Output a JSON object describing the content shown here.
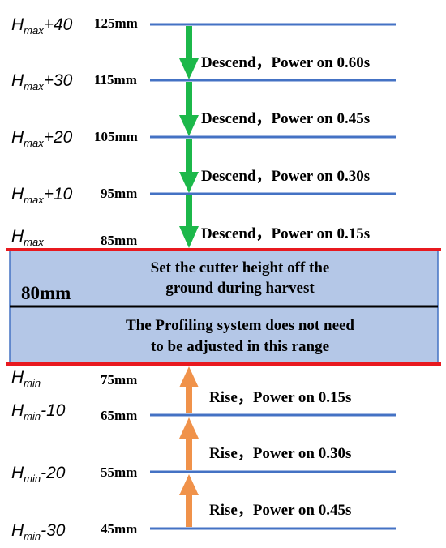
{
  "levels": [
    {
      "main": "H",
      "sub": "max",
      "suffix": "+40",
      "mm": "125mm"
    },
    {
      "main": "H",
      "sub": "max",
      "suffix": "+30",
      "mm": "115mm"
    },
    {
      "main": "H",
      "sub": "max",
      "suffix": "+20",
      "mm": "105mm"
    },
    {
      "main": "H",
      "sub": "max",
      "suffix": "+10",
      "mm": "95mm"
    },
    {
      "main": "H",
      "sub": "max",
      "suffix": "",
      "mm": "85mm"
    },
    {
      "main": "H",
      "sub": "min",
      "suffix": "",
      "mm": "75mm"
    },
    {
      "main": "H",
      "sub": "min",
      "suffix": "-10",
      "mm": "65mm"
    },
    {
      "main": "H",
      "sub": "min",
      "suffix": "-20",
      "mm": "55mm"
    },
    {
      "main": "H",
      "sub": "min",
      "suffix": "-30",
      "mm": "45mm"
    }
  ],
  "descend_actions": [
    "Descend，Power on 0.60s",
    "Descend，Power on 0.45s",
    "Descend，Power on 0.30s",
    "Descend，Power on 0.15s"
  ],
  "rise_actions": [
    "Rise，Power on 0.15s",
    "Rise，Power on 0.30s",
    "Rise，Power on 0.45s"
  ],
  "band": {
    "height_label": "80mm",
    "upper_line1": "Set the cutter height off the",
    "upper_line2": "ground during harvest",
    "lower_line1": "The Profiling system does not need",
    "lower_line2": "to be adjusted in this range"
  },
  "colors": {
    "level_line": "#4472c4",
    "boundary_line": "#e8191f",
    "band_fill": "#b4c7e7",
    "band_border": "#4472c4",
    "descend_arrow": "#1cb84a",
    "rise_arrow": "#f0924a"
  }
}
